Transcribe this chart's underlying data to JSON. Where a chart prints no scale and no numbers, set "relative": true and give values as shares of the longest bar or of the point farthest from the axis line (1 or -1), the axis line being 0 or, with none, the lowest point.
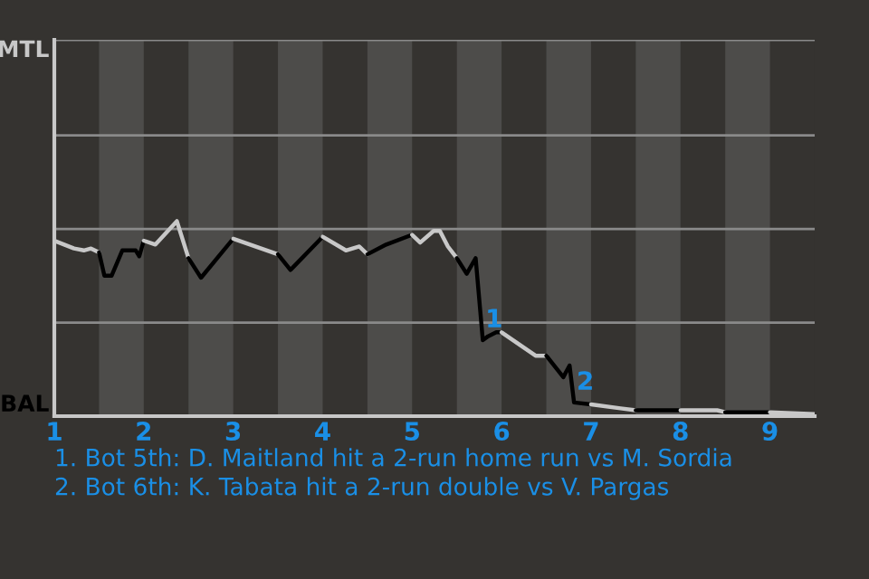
{
  "chart_data": {
    "type": "line",
    "relative": true,
    "series": [
      {
        "color": "#c8c8c8",
        "x": [
          1,
          1.22,
          1.33,
          1.41,
          1.5
        ],
        "values": [
          0.9,
          0.86,
          0.85,
          0.86,
          0.84
        ]
      },
      {
        "color": "#000000",
        "x": [
          1.5,
          1.56,
          1.64,
          1.76,
          1.91,
          1.95,
          2
        ],
        "values": [
          0.84,
          0.72,
          0.72,
          0.85,
          0.85,
          0.82,
          0.9
        ]
      },
      {
        "color": "#c8c8c8",
        "x": [
          2,
          2.13,
          2.37,
          2.5
        ],
        "values": [
          0.9,
          0.88,
          1,
          0.81
        ]
      },
      {
        "color": "#000000",
        "x": [
          2.5,
          2.64,
          3
        ],
        "values": [
          0.81,
          0.71,
          0.91
        ]
      },
      {
        "color": "#c8c8c8",
        "x": [
          3,
          3.5
        ],
        "values": [
          0.91,
          0.83
        ]
      },
      {
        "color": "#000000",
        "x": [
          3.5,
          3.64,
          4
        ],
        "values": [
          0.83,
          0.75,
          0.92
        ]
      },
      {
        "color": "#c8c8c8",
        "x": [
          4,
          4.26,
          4.41,
          4.5
        ],
        "values": [
          0.92,
          0.85,
          0.87,
          0.83
        ]
      },
      {
        "color": "#000000",
        "x": [
          4.5,
          4.71,
          5
        ],
        "values": [
          0.83,
          0.88,
          0.93
        ]
      },
      {
        "color": "#c8c8c8",
        "x": [
          5,
          5.09,
          5.24,
          5.31,
          5.4,
          5.5
        ],
        "values": [
          0.93,
          0.89,
          0.95,
          0.95,
          0.87,
          0.81
        ]
      },
      {
        "color": "#000000",
        "x": [
          5.5,
          5.61,
          5.71,
          5.79,
          5.85,
          5.94,
          6
        ],
        "values": [
          0.81,
          0.73,
          0.81,
          0.39,
          0.41,
          0.43,
          0.43
        ]
      },
      {
        "color": "#c8c8c8",
        "x": [
          6,
          6.38,
          6.5
        ],
        "values": [
          0.43,
          0.31,
          0.31
        ]
      },
      {
        "color": "#000000",
        "x": [
          6.5,
          6.69,
          6.76,
          6.81,
          7
        ],
        "values": [
          0.31,
          0.2,
          0.26,
          0.07,
          0.06
        ]
      },
      {
        "color": "#c8c8c8",
        "x": [
          7,
          7.33,
          7.5
        ],
        "values": [
          0.06,
          0.04,
          0.03
        ]
      },
      {
        "color": "#000000",
        "x": [
          7.5,
          7.72,
          8
        ],
        "values": [
          0.03,
          0.03,
          0.03
        ]
      },
      {
        "color": "#c8c8c8",
        "x": [
          8,
          8.41,
          8.5
        ],
        "values": [
          0.03,
          0.03,
          0.02
        ]
      },
      {
        "color": "#000000",
        "x": [
          8.5,
          9
        ],
        "values": [
          0.02,
          0.02
        ]
      },
      {
        "color": "#c8c8c8",
        "x": [
          9,
          9.5
        ],
        "values": [
          0.02,
          0.01
        ]
      }
    ],
    "xlim": [
      1,
      9.5
    ],
    "xticks": [
      1,
      2,
      3,
      4,
      5,
      6,
      7,
      8,
      9
    ],
    "ref_lines": [
      {
        "axis": "y",
        "value": 0.48,
        "color": "#8a8a8a"
      },
      {
        "axis": "y",
        "value": 0.96,
        "color": "#8a8a8a"
      },
      {
        "axis": "y",
        "value": 1.44,
        "color": "#8a8a8a"
      },
      {
        "axis": "y",
        "value": 1.93,
        "color": "#8a8a8a"
      }
    ],
    "bands": [
      {
        "axis": "x",
        "from": 1.5,
        "to": 2,
        "color": "#4d4c4a"
      },
      {
        "axis": "x",
        "from": 2.5,
        "to": 3,
        "color": "#4d4c4a"
      },
      {
        "axis": "x",
        "from": 3.5,
        "to": 4,
        "color": "#4d4c4a"
      },
      {
        "axis": "x",
        "from": 4.5,
        "to": 5,
        "color": "#4d4c4a"
      },
      {
        "axis": "x",
        "from": 5.5,
        "to": 6,
        "color": "#4d4c4a"
      },
      {
        "axis": "x",
        "from": 6.5,
        "to": 7,
        "color": "#4d4c4a"
      },
      {
        "axis": "x",
        "from": 7.5,
        "to": 8,
        "color": "#4d4c4a"
      },
      {
        "axis": "x",
        "from": 8.5,
        "to": 9,
        "color": "#4d4c4a"
      }
    ],
    "annotations": [
      "MTL",
      "BAL",
      {
        "text": "1",
        "x": 5.79,
        "y": 0.39
      },
      {
        "text": "2",
        "x": 6.81,
        "y": 0.07
      },
      "1. Bot 5th: D. Maitland hit a 2-run home run vs M. Sordia",
      "2. Bot 6th: K. Tabata hit a 2-run double vs V. Pargas"
    ]
  }
}
